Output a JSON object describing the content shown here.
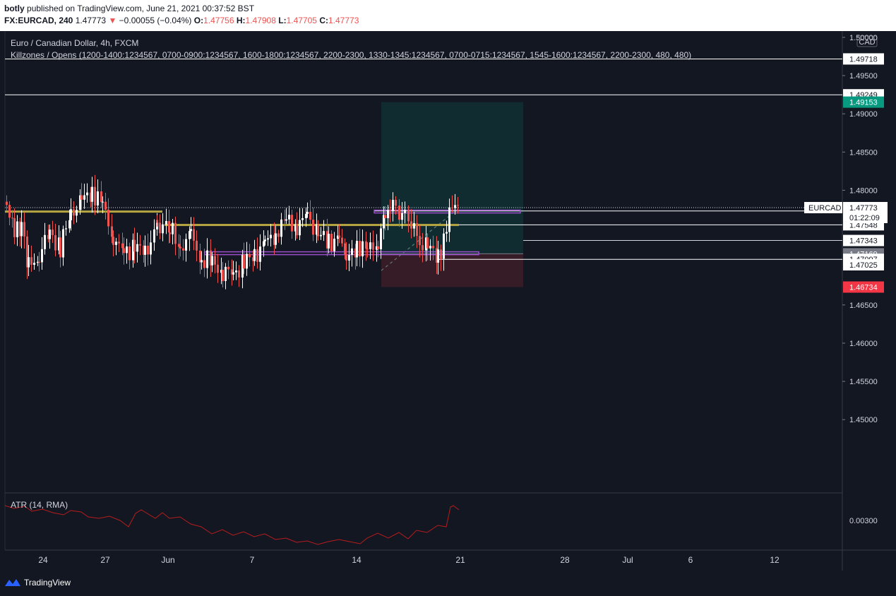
{
  "header": {
    "author": "botly",
    "published": "published on TradingView.com, June 21, 2021 00:37:52 BST",
    "symbol": "FX:EURCAD, 240",
    "last": "1.47773",
    "change": "−0.00055 (−0.04%)",
    "o_label": "O:",
    "o_value": "1.47756",
    "h_label": "H:",
    "h_value": "1.47908",
    "l_label": "L:",
    "l_value": "1.47705",
    "c_label": "C:",
    "c_value": "1.47773"
  },
  "chart": {
    "title": "Euro / Canadian Dollar, 4h, FXCM",
    "indicator": "Killzones / Opens (1200-1400:1234567, 0700-0900:1234567, 1600-1800:1234567, 2200-2300, 1330-1345:1234567, 0700-0715:1234567, 1545-1600:1234567, 2200-2300, 480, 480)",
    "currency": "CAD",
    "ylim": [
      1.443,
      1.5005
    ],
    "y_ticks": [
      "1.50000",
      "1.49500",
      "1.49000",
      "1.48500",
      "1.48000",
      "1.46500",
      "1.46000",
      "1.45500",
      "1.45000"
    ],
    "price_labels": [
      {
        "value": 1.49718,
        "text": "1.49718",
        "style": "white"
      },
      {
        "value": 1.49249,
        "text": "1.49249",
        "style": "white"
      },
      {
        "value": 1.49153,
        "text": "1.49153",
        "style": "teal"
      },
      {
        "value": 1.47729,
        "text": "1.47729",
        "style": "plain"
      },
      {
        "value": 1.47548,
        "text": "1.47548",
        "style": "plain"
      },
      {
        "value": 1.47343,
        "text": "1.47343",
        "style": "plain"
      },
      {
        "value": 1.47169,
        "text": "1.47169",
        "style": "gray"
      },
      {
        "value": 1.47097,
        "text": "1.47097",
        "style": "plain"
      },
      {
        "value": 1.47025,
        "text": "1.47025",
        "style": "plain"
      },
      {
        "value": 1.46734,
        "text": "1.46734",
        "style": "red"
      }
    ],
    "current": {
      "symbol": "EURCAD",
      "value": 1.47773,
      "text": "1.47773",
      "countdown": "01:22:09"
    },
    "x_labels": [
      "24",
      "27",
      "Jun",
      "7",
      "14",
      "21",
      "28",
      "Jul",
      "6",
      "12"
    ],
    "atr_label": "ATR (14, RMA)",
    "atr_tick": "0.00300",
    "colors": {
      "up": "#ffffff",
      "down": "#ef5350",
      "teal": "#089981",
      "red": "#f23645",
      "bg": "#131722",
      "grid": "#2a2e39",
      "yellow": "#b5a642",
      "purple": "#9c4dcc"
    }
  },
  "footer": {
    "brand": "TradingView"
  }
}
